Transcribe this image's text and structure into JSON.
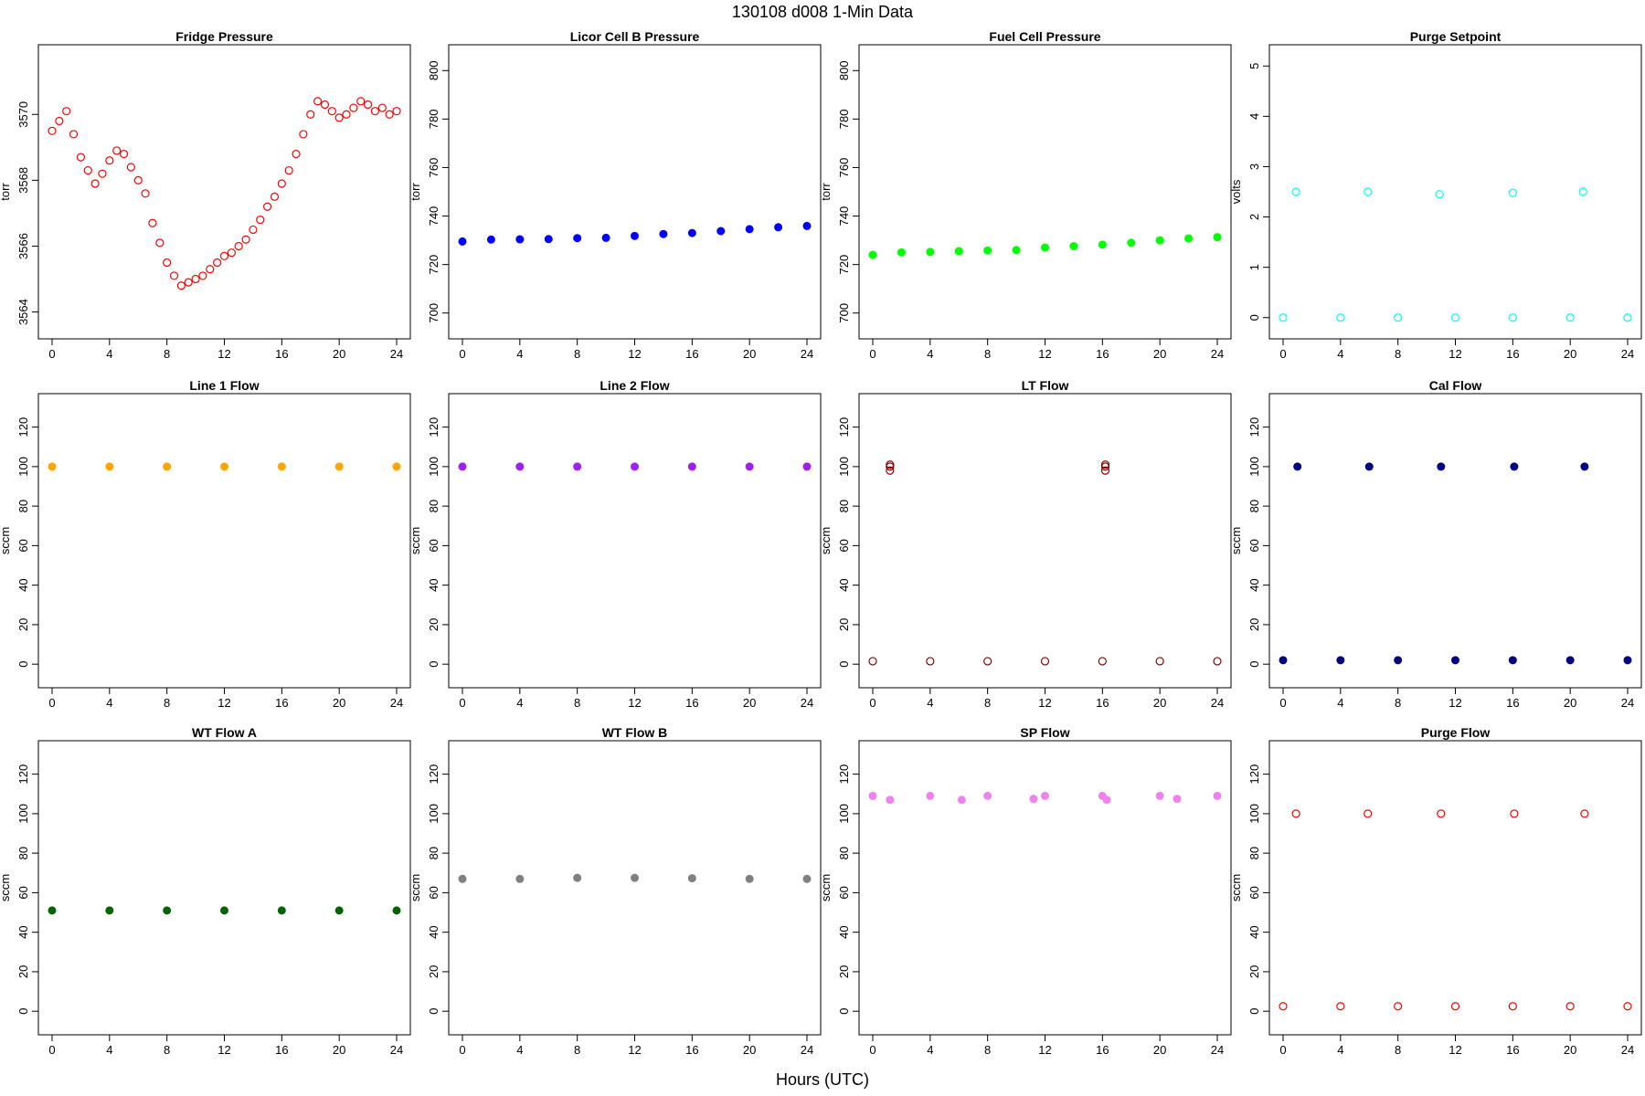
{
  "figure": {
    "title": "130108    d008    1-Min Data",
    "xlabel": "Hours (UTC)"
  },
  "chart_data": [
    {
      "type": "scatter",
      "title": "Fridge Pressure",
      "ylabel": "torr",
      "xlim": [
        0,
        24
      ],
      "ylim": [
        3563.6,
        3571.7
      ],
      "xticks": [
        "0",
        "4",
        "8",
        "12",
        "16",
        "20",
        "24"
      ],
      "yticks": [
        "3564",
        "3566",
        "3568",
        "3570"
      ],
      "marker": "open-circle",
      "color": "#ff0000",
      "series": [
        {
          "x": [
            0,
            0.5,
            1,
            1.5,
            2,
            2.5,
            3,
            3.5,
            4,
            4.5,
            5,
            5.5,
            6,
            6.5,
            7,
            7.5,
            8,
            8.5,
            9,
            9.5,
            10,
            10.5,
            11,
            11.5,
            12,
            12.5,
            13,
            13.5,
            14,
            14.5,
            15,
            15.5,
            16,
            16.5,
            17,
            17.5,
            18,
            18.5,
            19,
            19.5,
            20,
            20.5,
            21,
            21.5,
            22,
            22.5,
            23,
            23.5,
            24
          ],
          "y": [
            3569.5,
            3569.8,
            3570.1,
            3569.4,
            3568.7,
            3568.3,
            3567.9,
            3568.2,
            3568.6,
            3568.9,
            3568.8,
            3568.4,
            3568.0,
            3567.6,
            3566.7,
            3566.1,
            3565.5,
            3565.1,
            3564.8,
            3564.9,
            3565.0,
            3565.1,
            3565.3,
            3565.5,
            3565.7,
            3565.8,
            3566.0,
            3566.2,
            3566.5,
            3566.8,
            3567.2,
            3567.5,
            3567.9,
            3568.3,
            3568.8,
            3569.4,
            3570.0,
            3570.4,
            3570.3,
            3570.1,
            3569.9,
            3570.0,
            3570.2,
            3570.4,
            3570.3,
            3570.1,
            3570.2,
            3570.0,
            3570.1
          ]
        }
      ]
    },
    {
      "type": "scatter",
      "title": "Licor Cell B Pressure",
      "ylabel": "torr",
      "xlim": [
        0,
        24
      ],
      "ylim": [
        695,
        805
      ],
      "xticks": [
        "0",
        "4",
        "8",
        "12",
        "16",
        "20",
        "24"
      ],
      "yticks": [
        "700",
        "720",
        "740",
        "760",
        "780",
        "800"
      ],
      "marker": "filled-circle",
      "color": "#0000ff",
      "series": [
        {
          "x": [
            0,
            2,
            4,
            6,
            8,
            10,
            12,
            14,
            16,
            18,
            20,
            22,
            24
          ],
          "y": [
            729.5,
            730.3,
            730.4,
            730.5,
            730.9,
            731.0,
            731.8,
            732.6,
            733.0,
            733.8,
            734.6,
            735.4,
            735.9
          ]
        }
      ]
    },
    {
      "type": "scatter",
      "title": "Fuel Cell Pressure",
      "ylabel": "torr",
      "xlim": [
        0,
        24
      ],
      "ylim": [
        695,
        805
      ],
      "xticks": [
        "0",
        "4",
        "8",
        "12",
        "16",
        "20",
        "24"
      ],
      "yticks": [
        "700",
        "720",
        "740",
        "760",
        "780",
        "800"
      ],
      "marker": "filled-circle",
      "color": "#00ff00",
      "series": [
        {
          "x": [
            0,
            2,
            4,
            6,
            8,
            10,
            12,
            14,
            16,
            18,
            20,
            22,
            24
          ],
          "y": [
            724.0,
            725.0,
            725.2,
            725.5,
            725.8,
            726.0,
            727.0,
            727.6,
            728.2,
            729.0,
            730.0,
            730.8,
            731.3
          ]
        }
      ]
    },
    {
      "type": "scatter",
      "title": "Purge Setpoint",
      "ylabel": "volts",
      "xlim": [
        0,
        24
      ],
      "ylim": [
        -0.15,
        5.15
      ],
      "xticks": [
        "0",
        "4",
        "8",
        "12",
        "16",
        "20",
        "24"
      ],
      "yticks": [
        "0",
        "1",
        "2",
        "3",
        "4",
        "5"
      ],
      "marker": "open-circle",
      "color": "#00ffff",
      "series": [
        {
          "x": [
            0,
            4,
            8,
            12,
            16,
            20,
            24
          ],
          "y": [
            0,
            0,
            0,
            0,
            0,
            0,
            0
          ]
        },
        {
          "x": [
            0.9,
            5.9,
            10.9,
            16.0,
            20.9
          ],
          "y": [
            2.5,
            2.5,
            2.45,
            2.48,
            2.5
          ]
        }
      ]
    },
    {
      "type": "scatter",
      "title": "Line 1 Flow",
      "ylabel": "sccm",
      "xlim": [
        0,
        24
      ],
      "ylim": [
        -5,
        130
      ],
      "xticks": [
        "0",
        "4",
        "8",
        "12",
        "16",
        "20",
        "24"
      ],
      "yticks": [
        "0",
        "20",
        "40",
        "60",
        "80",
        "100",
        "120"
      ],
      "marker": "filled-circle",
      "color": "#ffa500",
      "series": [
        {
          "x": [
            0,
            4,
            8,
            12,
            16,
            20,
            24
          ],
          "y": [
            100,
            100,
            100,
            100,
            100,
            100,
            100
          ]
        }
      ]
    },
    {
      "type": "scatter",
      "title": "Line 2 Flow",
      "ylabel": "sccm",
      "xlim": [
        0,
        24
      ],
      "ylim": [
        -5,
        130
      ],
      "xticks": [
        "0",
        "4",
        "8",
        "12",
        "16",
        "20",
        "24"
      ],
      "yticks": [
        "0",
        "20",
        "40",
        "60",
        "80",
        "100",
        "120"
      ],
      "marker": "filled-circle",
      "color": "#a020f0",
      "series": [
        {
          "x": [
            0,
            4,
            8,
            12,
            16,
            20,
            24
          ],
          "y": [
            100,
            100,
            100,
            100,
            100,
            100,
            100
          ]
        }
      ]
    },
    {
      "type": "scatter",
      "title": "LT Flow",
      "ylabel": "sccm",
      "xlim": [
        0,
        24
      ],
      "ylim": [
        -5,
        130
      ],
      "xticks": [
        "0",
        "4",
        "8",
        "12",
        "16",
        "20",
        "24"
      ],
      "yticks": [
        "0",
        "20",
        "40",
        "60",
        "80",
        "100",
        "120"
      ],
      "marker": "open-circle",
      "color": "#8b0000",
      "series": [
        {
          "x": [
            0,
            4,
            8,
            12,
            16,
            20,
            24
          ],
          "y": [
            1.5,
            1.5,
            1.5,
            1.5,
            1.5,
            1.5,
            1.5
          ]
        },
        {
          "x": [
            1.2,
            1.2,
            1.2,
            16.2,
            16.2,
            16.2
          ],
          "y": [
            101,
            100,
            98,
            101,
            100,
            98
          ]
        }
      ]
    },
    {
      "type": "scatter",
      "title": "Cal Flow",
      "ylabel": "sccm",
      "xlim": [
        0,
        24
      ],
      "ylim": [
        -5,
        130
      ],
      "xticks": [
        "0",
        "4",
        "8",
        "12",
        "16",
        "20",
        "24"
      ],
      "yticks": [
        "0",
        "20",
        "40",
        "60",
        "80",
        "100",
        "120"
      ],
      "marker": "filled-circle",
      "color": "#000080",
      "series": [
        {
          "x": [
            0,
            4,
            8,
            12,
            16,
            20,
            24
          ],
          "y": [
            2,
            2,
            2,
            2,
            2,
            2,
            2
          ]
        },
        {
          "x": [
            1.0,
            6.0,
            11.0,
            16.1,
            21.0
          ],
          "y": [
            100,
            100,
            100,
            100,
            100
          ]
        }
      ]
    },
    {
      "type": "scatter",
      "title": "WT Flow A",
      "ylabel": "sccm",
      "xlim": [
        0,
        24
      ],
      "ylim": [
        -5,
        130
      ],
      "xticks": [
        "0",
        "4",
        "8",
        "12",
        "16",
        "20",
        "24"
      ],
      "yticks": [
        "0",
        "20",
        "40",
        "60",
        "80",
        "100",
        "120"
      ],
      "marker": "filled-circle",
      "color": "#006400",
      "series": [
        {
          "x": [
            0,
            4,
            8,
            12,
            16,
            20,
            24
          ],
          "y": [
            51,
            51,
            51,
            51,
            51,
            51,
            51
          ]
        }
      ]
    },
    {
      "type": "scatter",
      "title": "WT Flow B",
      "ylabel": "sccm",
      "xlim": [
        0,
        24
      ],
      "ylim": [
        -5,
        130
      ],
      "xticks": [
        "0",
        "4",
        "8",
        "12",
        "16",
        "20",
        "24"
      ],
      "yticks": [
        "0",
        "20",
        "40",
        "60",
        "80",
        "100",
        "120"
      ],
      "marker": "filled-circle",
      "color": "#808080",
      "series": [
        {
          "x": [
            0,
            4,
            8,
            12,
            16,
            20,
            24
          ],
          "y": [
            67,
            67,
            67.5,
            67.5,
            67.3,
            67,
            67
          ]
        }
      ]
    },
    {
      "type": "scatter",
      "title": "SP Flow",
      "ylabel": "sccm",
      "xlim": [
        0,
        24
      ],
      "ylim": [
        -5,
        130
      ],
      "xticks": [
        "0",
        "4",
        "8",
        "12",
        "16",
        "20",
        "24"
      ],
      "yticks": [
        "0",
        "20",
        "40",
        "60",
        "80",
        "100",
        "120"
      ],
      "marker": "filled-circle",
      "color": "#ee82ee",
      "series": [
        {
          "x": [
            0,
            4,
            8,
            12,
            16,
            20,
            24
          ],
          "y": [
            109,
            109,
            109,
            109,
            109,
            109,
            109
          ]
        },
        {
          "x": [
            1.2,
            6.2,
            11.2,
            16.3,
            21.2
          ],
          "y": [
            107,
            107,
            107.5,
            107,
            107.5
          ]
        }
      ]
    },
    {
      "type": "scatter",
      "title": "Purge Flow",
      "ylabel": "sccm",
      "xlim": [
        0,
        24
      ],
      "ylim": [
        -5,
        130
      ],
      "xticks": [
        "0",
        "4",
        "8",
        "12",
        "16",
        "20",
        "24"
      ],
      "yticks": [
        "0",
        "20",
        "40",
        "60",
        "80",
        "100",
        "120"
      ],
      "marker": "open-circle",
      "color": "#ff0000",
      "series": [
        {
          "x": [
            0,
            4,
            8,
            12,
            16,
            20,
            24
          ],
          "y": [
            2.5,
            2.5,
            2.5,
            2.5,
            2.5,
            2.5,
            2.5
          ]
        },
        {
          "x": [
            0.9,
            5.9,
            11.0,
            16.1,
            21.0
          ],
          "y": [
            100,
            100,
            100,
            100,
            100
          ]
        }
      ]
    }
  ]
}
